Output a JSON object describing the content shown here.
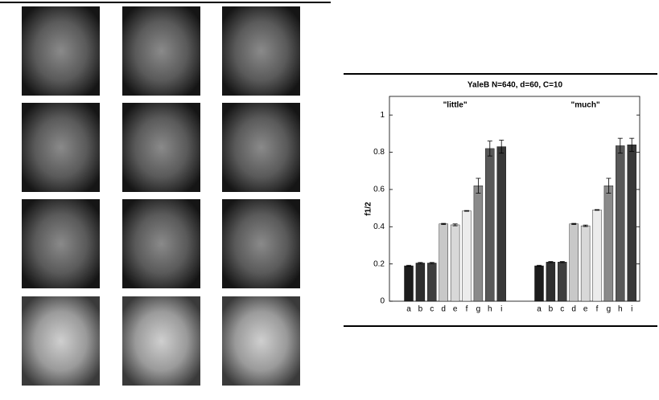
{
  "chart_data": {
    "type": "bar",
    "title": "YaleB N=640, d=60, C=10",
    "y_label": "f1/2",
    "categories": [
      "a",
      "b",
      "c",
      "d",
      "e",
      "f",
      "g",
      "h",
      "i"
    ],
    "colors": [
      "#1c1c1c",
      "#2e2e2e",
      "#3e3e3e",
      "#c8c8c8",
      "#d8d8d8",
      "#ececec",
      "#8a8a8a",
      "#585858",
      "#383838"
    ],
    "series": [
      {
        "name": "\"little\"",
        "values": [
          0.19,
          0.205,
          0.205,
          0.415,
          0.41,
          0.485,
          0.62,
          0.82,
          0.83
        ],
        "errors": [
          0.003,
          0.003,
          0.003,
          0.003,
          0.005,
          0.002,
          0.04,
          0.04,
          0.035
        ]
      },
      {
        "name": "\"much\"",
        "values": [
          0.19,
          0.21,
          0.21,
          0.415,
          0.405,
          0.49,
          0.62,
          0.835,
          0.84
        ],
        "errors": [
          0.003,
          0.003,
          0.003,
          0.003,
          0.004,
          0.002,
          0.04,
          0.04,
          0.035
        ]
      }
    ],
    "ylim": [
      0,
      1.1
    ],
    "yticks": [
      0,
      0.2,
      0.4,
      0.6,
      0.8,
      1
    ]
  }
}
